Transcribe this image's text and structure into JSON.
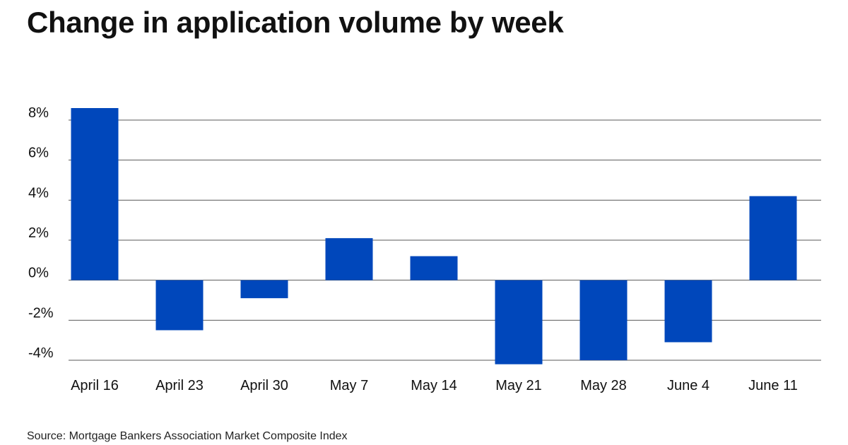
{
  "title": "Change in application volume by week",
  "source": "Source: Mortgage Bankers Association Market Composite Index",
  "colors": {
    "bar": "#0047BB",
    "grid": "#5a5a5a",
    "text": "#111111"
  },
  "chart_data": {
    "type": "bar",
    "title": "Change in application volume by week",
    "xlabel": "",
    "ylabel": "",
    "categories": [
      "April 16",
      "April 23",
      "April 30",
      "May 7",
      "May 14",
      "May 21",
      "May 28",
      "June 4",
      "June 11"
    ],
    "values": [
      8.6,
      -2.5,
      -0.9,
      2.1,
      1.2,
      -4.2,
      -4.0,
      -3.1,
      4.2
    ],
    "value_unit": "%",
    "ylim": [
      -4,
      8
    ],
    "yticks": [
      8,
      6,
      4,
      2,
      0,
      -2,
      -4
    ],
    "ytick_labels": [
      "8%",
      "6%",
      "4%",
      "2%",
      "0%",
      "-2%",
      "-4%"
    ],
    "grid": true,
    "legend": "none"
  }
}
